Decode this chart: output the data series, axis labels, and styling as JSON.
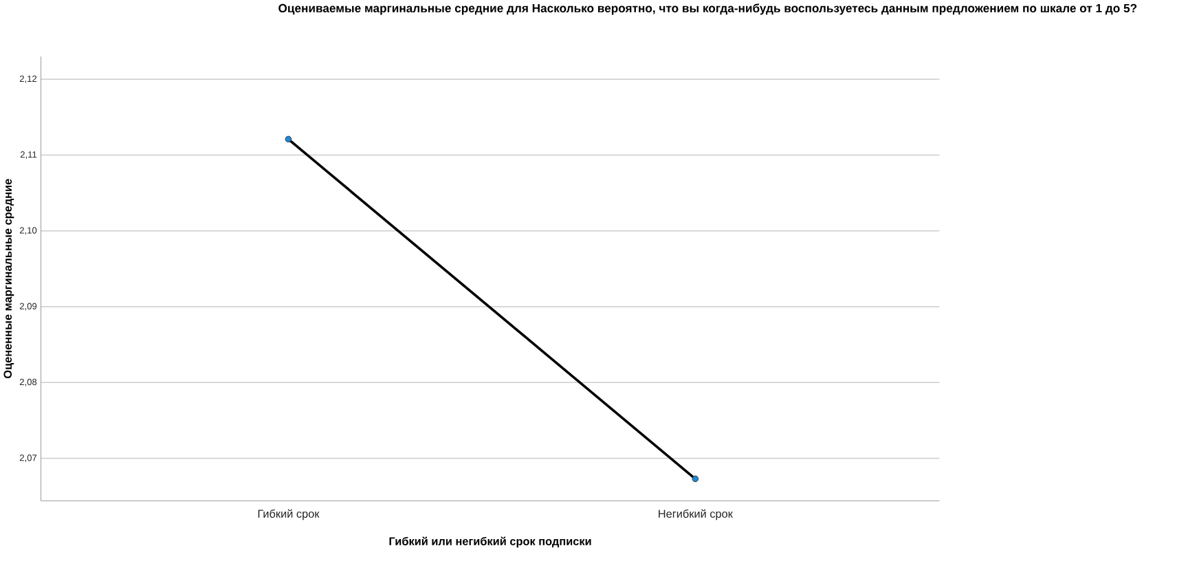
{
  "chart_data": {
    "type": "line",
    "title": "Оцениваемые маргинальные средние для Насколько вероятно, что вы когда-нибудь воспользуетесь данным предложением по шкале от 1 до 5?",
    "xlabel": "Гибкий или негибкий срок подписки",
    "ylabel": "Оцененные маргинальные средние",
    "categories": [
      "Гибкий срок",
      "Негибкий срок"
    ],
    "series": [
      {
        "color": "#000000",
        "values": [
          2.1121,
          2.0673
        ]
      }
    ],
    "ylim": [
      2.0644,
      2.123
    ],
    "yticks": [
      {
        "value": 2.07,
        "label": "2,07"
      },
      {
        "value": 2.08,
        "label": "2,08"
      },
      {
        "value": 2.09,
        "label": "2,09"
      },
      {
        "value": 2.1,
        "label": "2,10"
      },
      {
        "value": 2.11,
        "label": "2,11"
      },
      {
        "value": 2.12,
        "label": "2,12"
      }
    ],
    "grid": "y",
    "marker": "circle",
    "line_style": "solid"
  }
}
